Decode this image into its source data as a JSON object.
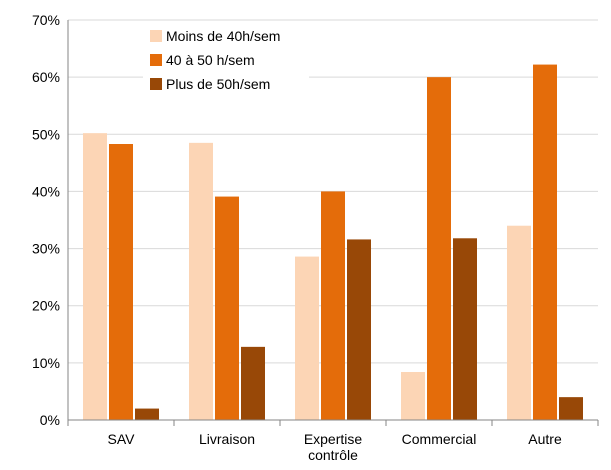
{
  "chart_data": {
    "type": "bar",
    "categories": [
      [
        "SAV"
      ],
      [
        "Livraison"
      ],
      [
        "Expertise",
        "contrôle"
      ],
      [
        "Commercial"
      ],
      [
        "Autre"
      ]
    ],
    "series": [
      {
        "name": "Moins de 40h/sem",
        "color": "#fcd5b5",
        "values": [
          50.2,
          48.5,
          28.6,
          8.4,
          34.0
        ]
      },
      {
        "name": "40 à 50 h/sem",
        "color": "#e46c0a",
        "values": [
          48.3,
          39.1,
          40.0,
          60.0,
          62.2
        ]
      },
      {
        "name": "Plus de 50h/sem",
        "color": "#984807",
        "values": [
          2.0,
          12.8,
          31.6,
          31.8,
          4.0
        ]
      }
    ],
    "y_ticks": [
      "0%",
      "10%",
      "20%",
      "30%",
      "40%",
      "50%",
      "60%",
      "70%"
    ],
    "ylim": [
      0,
      70
    ],
    "grid": true,
    "legend_position": "top-left"
  }
}
